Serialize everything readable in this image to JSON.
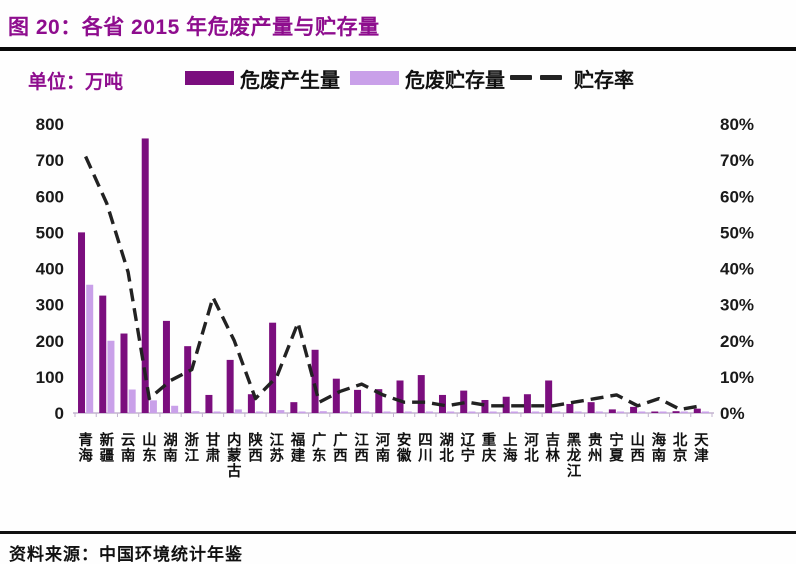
{
  "header": {
    "title": "图 20：各省 2015 年危废产量与贮存量"
  },
  "legend": {
    "unit_label": "单位：万吨",
    "items": [
      {
        "label": "危废产生量",
        "type": "bar",
        "color": "#7b0e7e"
      },
      {
        "label": "危废贮存量",
        "type": "bar",
        "color": "#c9a0e9"
      },
      {
        "label": "贮存率",
        "type": "dashed-line",
        "color": "#222222"
      }
    ]
  },
  "chart_data": {
    "type": "bar",
    "subtype": "combo-bar-line",
    "title": "各省 2015 年危废产量与贮存量",
    "unit": "万吨",
    "grid": false,
    "legend_position": "top",
    "categories": [
      "青海",
      "新疆",
      "云南",
      "山东",
      "湖南",
      "浙江",
      "甘肃",
      "内蒙古",
      "陕西",
      "江苏",
      "福建",
      "广东",
      "广西",
      "江西",
      "河南",
      "安徽",
      "四川",
      "湖北",
      "辽宁",
      "重庆",
      "上海",
      "河北",
      "吉林",
      "黑龙江",
      "贵州",
      "宁夏",
      "山西",
      "海南",
      "北京",
      "天津"
    ],
    "series": [
      {
        "name": "危废产生量",
        "type": "bar",
        "axis": "left",
        "unit": "万吨",
        "color": "#7b0e7e",
        "values": [
          500,
          325,
          220,
          760,
          255,
          185,
          50,
          147,
          52,
          250,
          30,
          175,
          95,
          64,
          66,
          90,
          105,
          50,
          62,
          36,
          45,
          52,
          90,
          25,
          30,
          10,
          17,
          4,
          5,
          12
        ]
      },
      {
        "name": "危废贮存量",
        "type": "bar",
        "axis": "left",
        "unit": "万吨",
        "color": "#c9a0e9",
        "values": [
          355,
          200,
          65,
          35,
          20,
          5,
          3,
          10,
          3,
          8,
          2,
          5,
          3,
          2,
          2,
          2,
          3,
          2,
          3,
          2,
          2,
          3,
          3,
          2,
          2,
          2,
          2,
          2,
          1,
          1
        ]
      },
      {
        "name": "贮存率",
        "type": "line",
        "style": "dashed",
        "axis": "right",
        "unit": "%",
        "color": "#222222",
        "values": [
          71,
          58,
          39,
          4,
          9,
          12,
          32,
          20,
          4,
          10,
          25,
          3,
          6,
          8,
          5,
          3,
          3,
          2,
          3,
          2,
          2,
          2,
          2,
          3,
          4,
          5,
          2,
          4,
          1,
          2
        ]
      }
    ],
    "left_axis": {
      "min": 0,
      "max": 800,
      "step": 100,
      "ticks": [
        "800",
        "700",
        "600",
        "500",
        "400",
        "300",
        "200",
        "100",
        "0"
      ]
    },
    "right_axis": {
      "min": 0,
      "max": 80,
      "step": 10,
      "ticks": [
        "80%",
        "70%",
        "60%",
        "50%",
        "40%",
        "30%",
        "20%",
        "10%",
        "0%"
      ]
    }
  },
  "footer": {
    "source": "资料来源：中国环境统计年鉴"
  }
}
